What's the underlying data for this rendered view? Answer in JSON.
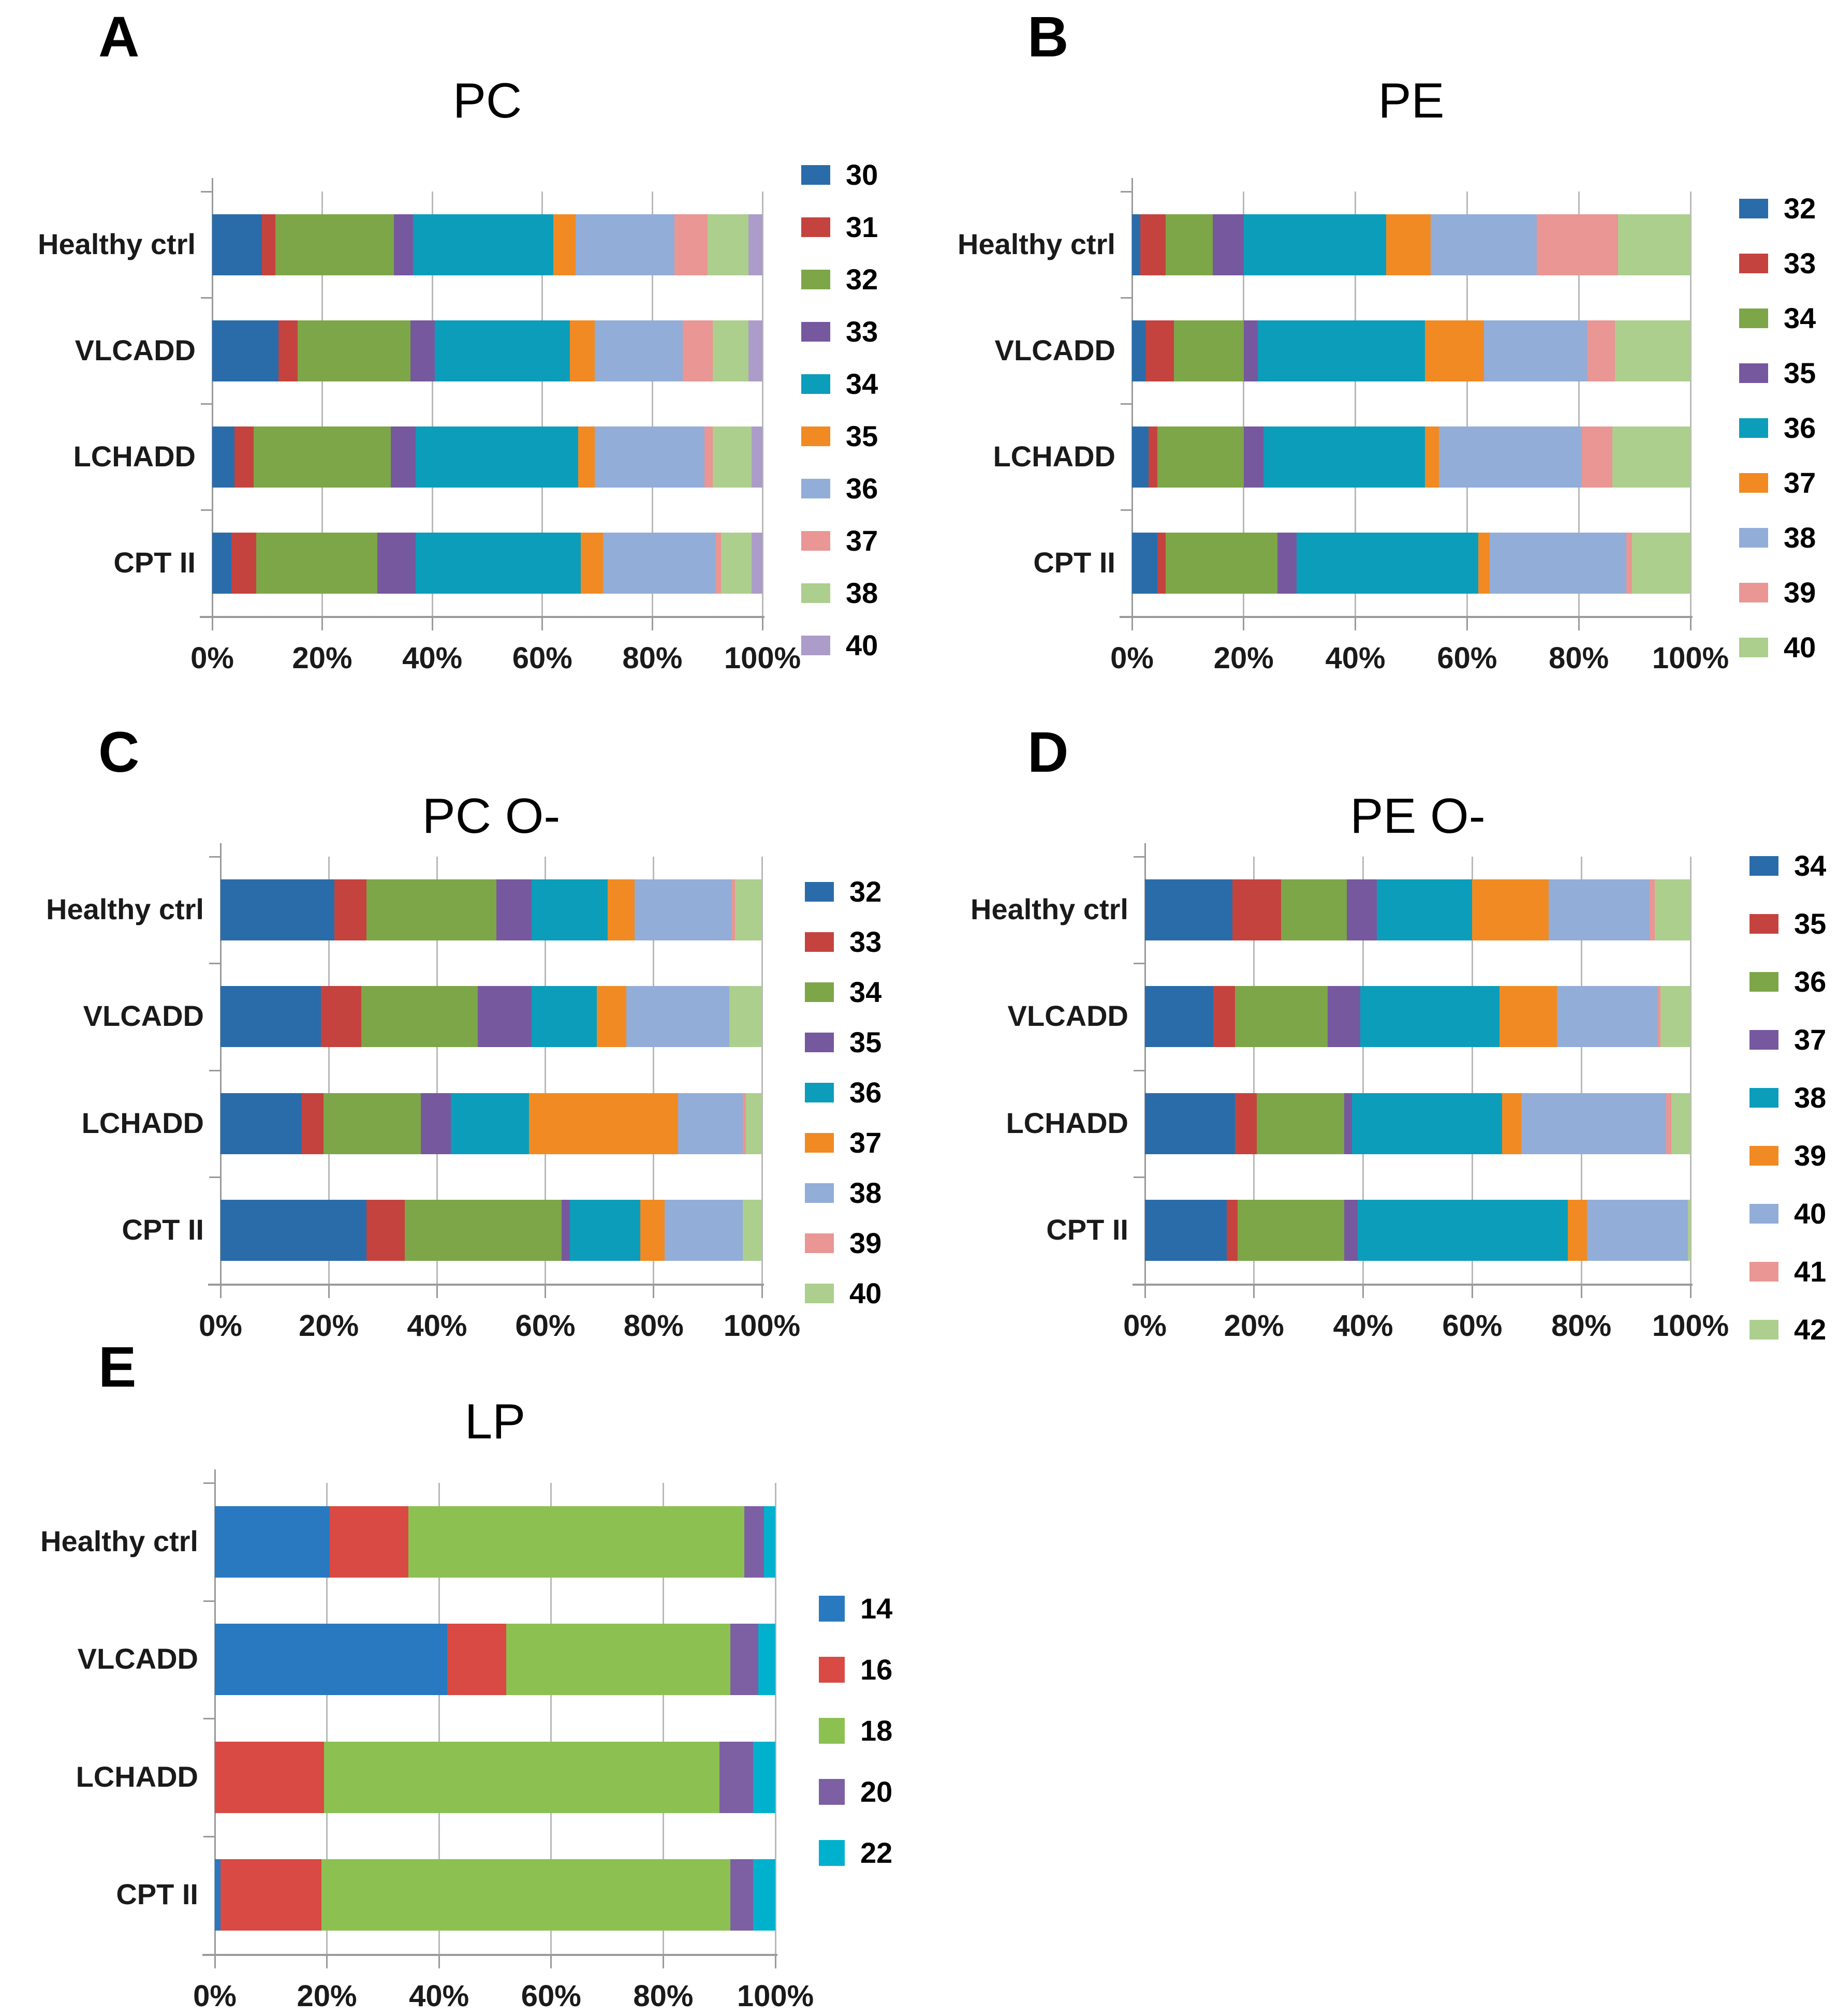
{
  "figure": {
    "x_ticks": [
      "0%",
      "20%",
      "40%",
      "60%",
      "80%",
      "100%"
    ],
    "categories": [
      "Healthy ctrl",
      "VLCADD",
      "LCHADD",
      "CPT II"
    ]
  },
  "chart_data": [
    {
      "panel_letter": "A",
      "title": "PC",
      "type": "bar",
      "stacked": true,
      "orientation": "horizontal",
      "grid": true,
      "legend_position": "right",
      "xlim": [
        0,
        100
      ],
      "x_ticks": [
        "0%",
        "20%",
        "40%",
        "60%",
        "80%",
        "100%"
      ],
      "categories": [
        "Healthy ctrl",
        "VLCADD",
        "LCHADD",
        "CPT II"
      ],
      "series": [
        {
          "name": "30",
          "color": "#2A6CA9",
          "values": [
            9,
            12,
            4,
            3.5
          ]
        },
        {
          "name": "31",
          "color": "#C4433F",
          "values": [
            2.5,
            3.5,
            3.5,
            4.5
          ]
        },
        {
          "name": "32",
          "color": "#7CA647",
          "values": [
            21.5,
            20.5,
            25,
            22
          ]
        },
        {
          "name": "33",
          "color": "#76589E",
          "values": [
            3.5,
            4.5,
            4.5,
            7
          ]
        },
        {
          "name": "34",
          "color": "#0C9DBB",
          "values": [
            25.5,
            24.5,
            29.5,
            30
          ]
        },
        {
          "name": "35",
          "color": "#F18A22",
          "values": [
            4,
            4.5,
            3,
            4
          ]
        },
        {
          "name": "36",
          "color": "#92ADD8",
          "values": [
            18,
            16,
            20,
            20.5
          ]
        },
        {
          "name": "37",
          "color": "#E99694",
          "values": [
            6,
            5.5,
            1.5,
            1
          ]
        },
        {
          "name": "38",
          "color": "#ACCF8D",
          "values": [
            7.5,
            6.5,
            7,
            5.5
          ]
        },
        {
          "name": "40",
          "color": "#AC9CCA",
          "values": [
            2.5,
            2.5,
            2,
            2
          ]
        }
      ]
    },
    {
      "panel_letter": "B",
      "title": "PE",
      "type": "bar",
      "stacked": true,
      "orientation": "horizontal",
      "grid": true,
      "legend_position": "right",
      "xlim": [
        0,
        100
      ],
      "x_ticks": [
        "0%",
        "20%",
        "40%",
        "60%",
        "80%",
        "100%"
      ],
      "categories": [
        "Healthy ctrl",
        "VLCADD",
        "LCHADD",
        "CPT II"
      ],
      "series": [
        {
          "name": "32",
          "color": "#2A6CA9",
          "values": [
            1.5,
            2.5,
            3,
            4.5
          ]
        },
        {
          "name": "33",
          "color": "#C4433F",
          "values": [
            4.5,
            5,
            1.5,
            1.5
          ]
        },
        {
          "name": "34",
          "color": "#7CA647",
          "values": [
            8.5,
            12.5,
            15.5,
            20
          ]
        },
        {
          "name": "35",
          "color": "#76589E",
          "values": [
            5.5,
            2.5,
            3.5,
            3.5
          ]
        },
        {
          "name": "36",
          "color": "#0C9DBB",
          "values": [
            25.5,
            30,
            29,
            32.5
          ]
        },
        {
          "name": "37",
          "color": "#F18A22",
          "values": [
            8,
            10.5,
            2.5,
            2
          ]
        },
        {
          "name": "38",
          "color": "#92ADD8",
          "values": [
            19,
            18.5,
            25.5,
            24.5
          ]
        },
        {
          "name": "39",
          "color": "#E99694",
          "values": [
            14.5,
            5,
            5.5,
            1
          ]
        },
        {
          "name": "40",
          "color": "#ACCF8D",
          "values": [
            13,
            13.5,
            14,
            10.5
          ]
        }
      ]
    },
    {
      "panel_letter": "C",
      "title": "PC O-",
      "type": "bar",
      "stacked": true,
      "orientation": "horizontal",
      "grid": true,
      "legend_position": "right",
      "xlim": [
        0,
        100
      ],
      "x_ticks": [
        "0%",
        "20%",
        "40%",
        "60%",
        "80%",
        "100%"
      ],
      "categories": [
        "Healthy ctrl",
        "VLCADD",
        "LCHADD",
        "CPT II"
      ],
      "series": [
        {
          "name": "32",
          "color": "#2A6CA9",
          "values": [
            21,
            18.5,
            15,
            27
          ]
        },
        {
          "name": "33",
          "color": "#C4433F",
          "values": [
            6,
            7.5,
            4,
            7
          ]
        },
        {
          "name": "34",
          "color": "#7CA647",
          "values": [
            24,
            21.5,
            18,
            29
          ]
        },
        {
          "name": "35",
          "color": "#76589E",
          "values": [
            6.5,
            10,
            5.5,
            1.5
          ]
        },
        {
          "name": "36",
          "color": "#0C9DBB",
          "values": [
            14,
            12,
            14.5,
            13
          ]
        },
        {
          "name": "37",
          "color": "#F18A22",
          "values": [
            5,
            5.5,
            27.5,
            4.5
          ]
        },
        {
          "name": "38",
          "color": "#92ADD8",
          "values": [
            18,
            19,
            12,
            14.5
          ]
        },
        {
          "name": "39",
          "color": "#E99694",
          "values": [
            0.5,
            0,
            0.5,
            0
          ]
        },
        {
          "name": "40",
          "color": "#ACCF8D",
          "values": [
            5,
            6,
            3,
            3.5
          ]
        }
      ]
    },
    {
      "panel_letter": "D",
      "title": "PE O-",
      "type": "bar",
      "stacked": true,
      "orientation": "horizontal",
      "grid": true,
      "legend_position": "right",
      "xlim": [
        0,
        100
      ],
      "x_ticks": [
        "0%",
        "20%",
        "40%",
        "60%",
        "80%",
        "100%"
      ],
      "categories": [
        "Healthy ctrl",
        "VLCADD",
        "LCHADD",
        "CPT II"
      ],
      "series": [
        {
          "name": "34",
          "color": "#2A6CA9",
          "values": [
            16,
            12.5,
            16.5,
            15
          ]
        },
        {
          "name": "35",
          "color": "#C4433F",
          "values": [
            9,
            4,
            4,
            2
          ]
        },
        {
          "name": "36",
          "color": "#7CA647",
          "values": [
            12,
            17,
            16,
            19.5
          ]
        },
        {
          "name": "37",
          "color": "#76589E",
          "values": [
            5.5,
            6,
            1.5,
            2.5
          ]
        },
        {
          "name": "38",
          "color": "#0C9DBB",
          "values": [
            17.5,
            25.5,
            27.5,
            38.5
          ]
        },
        {
          "name": "39",
          "color": "#F18A22",
          "values": [
            14,
            10.5,
            3.5,
            3.5
          ]
        },
        {
          "name": "40",
          "color": "#92ADD8",
          "values": [
            18.5,
            18.5,
            26.5,
            18.5
          ]
        },
        {
          "name": "41",
          "color": "#E99694",
          "values": [
            1,
            0.5,
            1,
            0
          ]
        },
        {
          "name": "42",
          "color": "#ACCF8D",
          "values": [
            6.5,
            5.5,
            3.5,
            0.5
          ]
        }
      ]
    },
    {
      "panel_letter": "E",
      "title": "LP",
      "type": "bar",
      "stacked": true,
      "orientation": "horizontal",
      "grid": true,
      "legend_position": "right",
      "xlim": [
        0,
        100
      ],
      "x_ticks": [
        "0%",
        "20%",
        "40%",
        "60%",
        "80%",
        "100%"
      ],
      "categories": [
        "Healthy ctrl",
        "VLCADD",
        "LCHADD",
        "CPT II"
      ],
      "series": [
        {
          "name": "14",
          "color": "#2979C1",
          "values": [
            20.5,
            41.5,
            0,
            1
          ]
        },
        {
          "name": "16",
          "color": "#D84A43",
          "values": [
            14,
            10.5,
            19.5,
            18
          ]
        },
        {
          "name": "18",
          "color": "#8CC152",
          "values": [
            60,
            40,
            70.5,
            73
          ]
        },
        {
          "name": "20",
          "color": "#7D5FA4",
          "values": [
            3.5,
            5,
            6,
            4
          ]
        },
        {
          "name": "22",
          "color": "#00B1CE",
          "values": [
            2,
            3,
            4,
            4
          ]
        }
      ]
    }
  ]
}
